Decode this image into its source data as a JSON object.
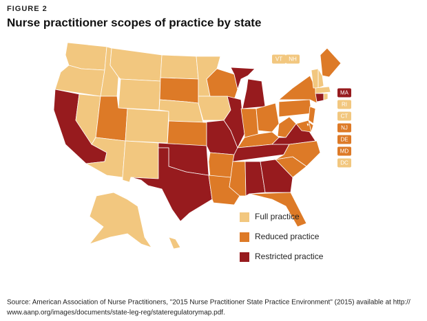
{
  "header": {
    "figure": "FIGURE 2",
    "title": "Nurse practitioner scopes of practice by state"
  },
  "legend": [
    {
      "label": "Full practice",
      "color": "#f2c77f"
    },
    {
      "label": "Reduced practice",
      "color": "#dd7a27"
    },
    {
      "label": "Restricted practice",
      "color": "#971b1e"
    }
  ],
  "map": {
    "regions": [
      0,
      0,
      2,
      0,
      0,
      0,
      0,
      1,
      0,
      0,
      0,
      0,
      1,
      0,
      1,
      2,
      2,
      0,
      0,
      2,
      1,
      1,
      1,
      2,
      2,
      1,
      1,
      1,
      1,
      2,
      1,
      1,
      1,
      2,
      1,
      2,
      2,
      1,
      1,
      1,
      1,
      1,
      1,
      0,
      0,
      0,
      2,
      0,
      0,
      0,
      0
    ],
    "labels": [
      {
        "text": "VT",
        "category": 0
      },
      {
        "text": "NH",
        "category": 0
      },
      {
        "text": "MA",
        "category": 2
      },
      {
        "text": "RI",
        "category": 0
      },
      {
        "text": "CT",
        "category": 0
      },
      {
        "text": "NJ",
        "category": 1
      },
      {
        "text": "DE",
        "category": 1
      },
      {
        "text": "MD",
        "category": 1
      },
      {
        "text": "DC",
        "category": 0
      }
    ]
  },
  "source": [
    "Source: American Association of Nurse Practitioners, \"2015 Nurse Practitioner State Practice Environment\" (2015) available at http://",
    "www.aanp.org/images/documents/state-leg-reg/stateregulatorymap.pdf."
  ]
}
